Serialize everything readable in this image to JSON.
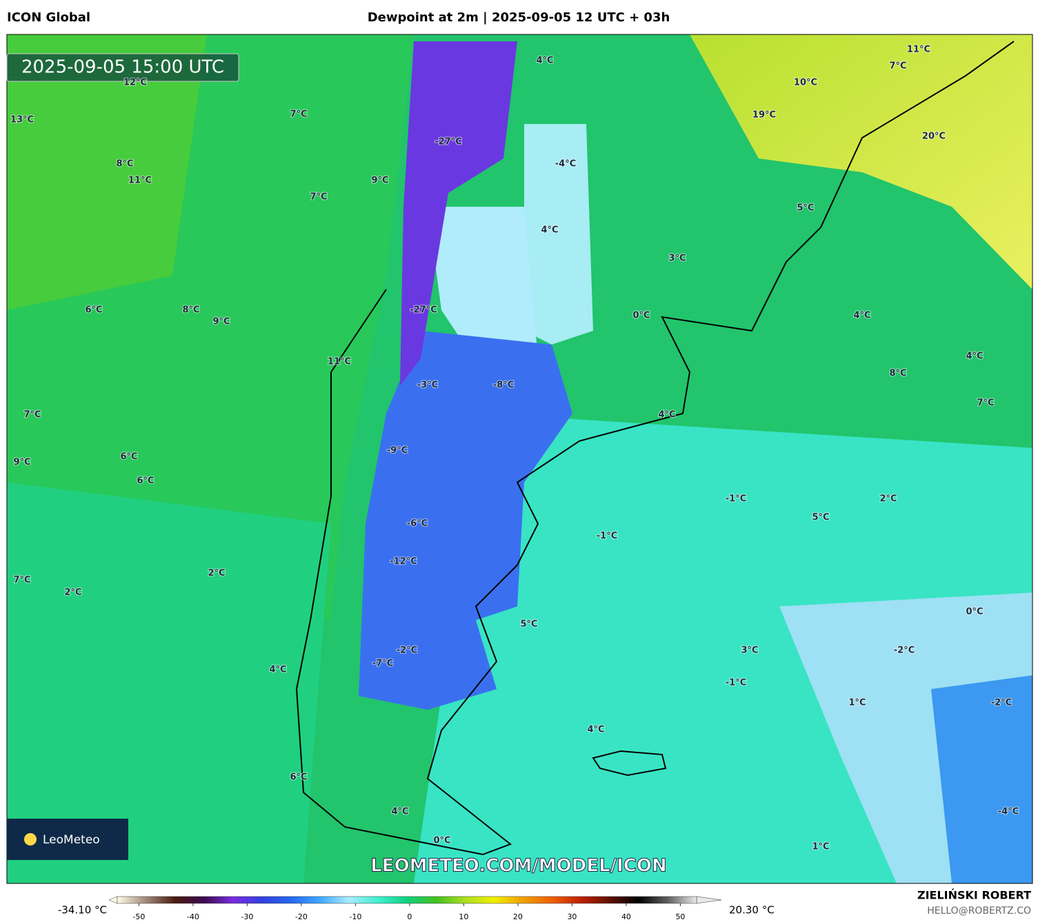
{
  "header": {
    "model": "ICON Global",
    "title": "Dewpoint at 2m | 2025-09-05 12 UTC + 03h"
  },
  "map": {
    "valid_time": "2025-09-05 15:00 UTC",
    "logo": "LeoMeteo",
    "watermark": "LEOMETEO.COM/MODEL/ICON",
    "labels": [
      "11°C",
      "7°C",
      "10°C",
      "19°C",
      "20°C",
      "4°C",
      "12°C",
      "13°C",
      "7°C",
      "-27°C",
      "-4°C",
      "8°C",
      "11°C",
      "9°C",
      "7°C",
      "5°C",
      "4°C",
      "3°C",
      "6°C",
      "8°C",
      "9°C",
      "-27°C",
      "0°C",
      "4°C",
      "11°C",
      "4°C",
      "8°C",
      "-3°C",
      "-8°C",
      "7°C",
      "7°C",
      "4°C",
      "9°C",
      "6°C",
      "-9°C",
      "6°C",
      "-1°C",
      "2°C",
      "5°C",
      "-6°C",
      "-1°C",
      "-12°C",
      "2°C",
      "7°C",
      "2°C",
      "0°C",
      "5°C",
      "3°C",
      "-2°C",
      "-2°C",
      "-7°C",
      "4°C",
      "-1°C",
      "1°C",
      "-2°C",
      "4°C",
      "6°C",
      "-4°C",
      "4°C",
      "0°C",
      "1°C"
    ]
  },
  "colorbar": {
    "min_label": "-34.10 °C",
    "max_label": "20.30 °C",
    "lim": [
      -54,
      53
    ],
    "ticks": [
      -50,
      -40,
      -30,
      -20,
      -10,
      0,
      10,
      20,
      30,
      40,
      50
    ],
    "colors": [
      "#fffbe6",
      "#a08878",
      "#4a1a10",
      "#3a0a50",
      "#7a2be0",
      "#3040e0",
      "#2468f0",
      "#40a8ff",
      "#a8ecff",
      "#40f0d0",
      "#10d080",
      "#40c020",
      "#a8e020",
      "#f0f000",
      "#f0a000",
      "#f06000",
      "#c02000",
      "#601000",
      "#000000",
      "#606060",
      "#e8e8e8"
    ]
  },
  "credits": {
    "author": "ZIELIŃSKI ROBERT",
    "email": "HELLO@ROBERTZ.CO"
  }
}
